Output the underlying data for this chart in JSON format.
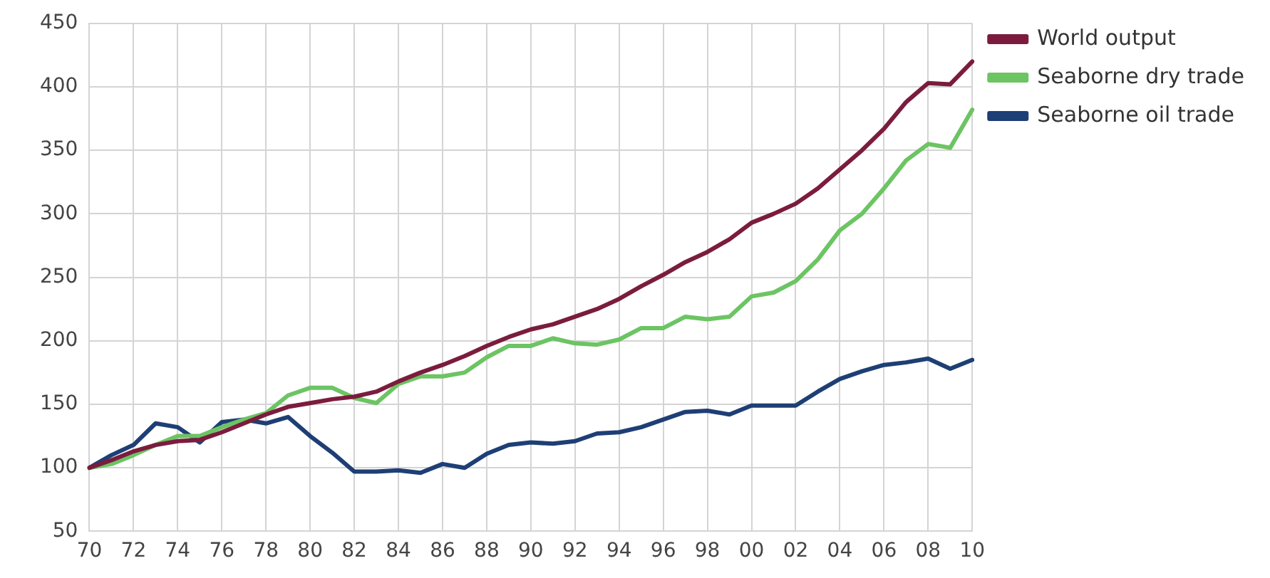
{
  "chart_data": {
    "type": "line",
    "categories": [
      "70",
      null,
      "72",
      null,
      "74",
      null,
      "76",
      null,
      "78",
      null,
      "80",
      null,
      "82",
      null,
      "84",
      null,
      "86",
      null,
      "88",
      null,
      "90",
      null,
      "92",
      null,
      "94",
      null,
      "96",
      null,
      "98",
      null,
      "00",
      null,
      "02",
      null,
      "04",
      null,
      "06",
      null,
      "08",
      null,
      "10"
    ],
    "series": [
      {
        "name": "World output",
        "color": "#7b1c3e",
        "values": [
          100,
          106,
          113,
          118,
          121,
          122,
          128,
          135,
          142,
          148,
          151,
          154,
          156,
          160,
          168,
          175,
          181,
          188,
          196,
          203,
          209,
          213,
          219,
          225,
          233,
          243,
          252,
          262,
          270,
          280,
          293,
          300,
          308,
          320,
          335,
          350,
          367,
          388,
          403,
          402,
          420
        ]
      },
      {
        "name": "Seaborne dry trade",
        "color": "#6cc463",
        "values": [
          100,
          103,
          110,
          118,
          125,
          125,
          132,
          138,
          143,
          157,
          163,
          163,
          155,
          151,
          166,
          172,
          172,
          175,
          187,
          196,
          196,
          202,
          198,
          197,
          201,
          210,
          210,
          219,
          217,
          219,
          235,
          238,
          247,
          264,
          287,
          300,
          320,
          342,
          355,
          352,
          382
        ]
      },
      {
        "name": "Seaborne oil trade",
        "color": "#1e3f75",
        "values": [
          100,
          110,
          118,
          135,
          132,
          120,
          136,
          138,
          135,
          140,
          125,
          112,
          97,
          97,
          98,
          96,
          103,
          100,
          111,
          118,
          120,
          119,
          121,
          127,
          128,
          132,
          138,
          144,
          145,
          142,
          149,
          149,
          149,
          160,
          170,
          176,
          181,
          183,
          186,
          178,
          185
        ]
      }
    ],
    "ylim": [
      50,
      450
    ],
    "yticks": [
      50,
      100,
      150,
      200,
      250,
      300,
      350,
      400,
      450
    ],
    "grid": true,
    "legend": "top right",
    "marker": "none",
    "line_style": "solid"
  }
}
